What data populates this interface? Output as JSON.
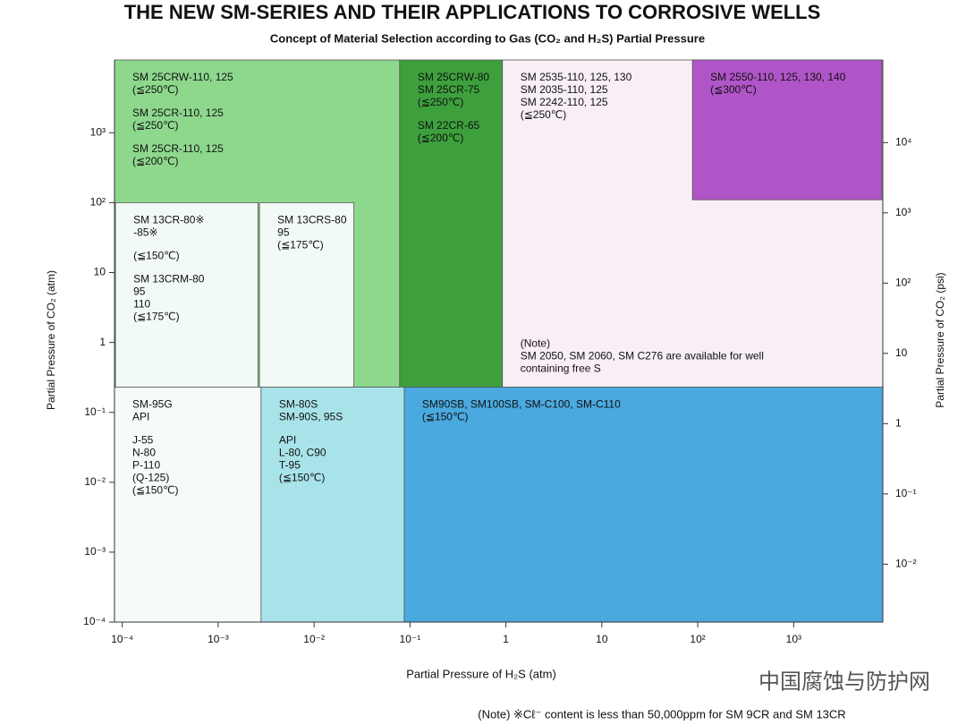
{
  "chart_data": {
    "type": "region",
    "title": "THE NEW SM-SERIES AND THEIR APPLICATIONS TO CORROSIVE WELLS",
    "subtitle": "Concept of Material Selection according to Gas (CO₂ and H₂S) Partial Pressure",
    "xlabel": "Partial Pressure of H₂S (atm)",
    "ylabel": "Partial Pressure of CO₂ (atm)",
    "y2label": "Partial Pressure of CO₂ (psi)",
    "xscale": "log",
    "yscale": "log",
    "xlim": [
      8.3e-05,
      8500
    ],
    "ylim": [
      0.0001,
      11000
    ],
    "y2lim": [
      0.0015,
      150000
    ],
    "xticks": [
      {
        "value": 0.0001,
        "label": "10⁻⁴"
      },
      {
        "value": 0.001,
        "label": "10⁻³"
      },
      {
        "value": 0.01,
        "label": "10⁻²"
      },
      {
        "value": 0.1,
        "label": "10⁻¹"
      },
      1,
      10,
      {
        "value": 100,
        "label": "10²"
      },
      {
        "value": 1000,
        "label": "10³"
      }
    ],
    "yticks": [
      {
        "value": 0.0001,
        "label": "10⁻⁴"
      },
      {
        "value": 0.001,
        "label": "10⁻³"
      },
      {
        "value": 0.01,
        "label": "10⁻²"
      },
      {
        "value": 0.1,
        "label": "10⁻¹"
      },
      1,
      10,
      {
        "value": 100,
        "label": "10²"
      },
      {
        "value": 1000,
        "label": "10³"
      }
    ],
    "y2ticks": [
      {
        "value": 0.01,
        "label": "10⁻²"
      },
      {
        "value": 0.1,
        "label": "10⁻¹"
      },
      1,
      10,
      {
        "value": 100,
        "label": "10²"
      },
      {
        "value": 1000,
        "label": "10³"
      },
      {
        "value": 10000,
        "label": "10⁴"
      }
    ],
    "regions": [
      {
        "x_range": [
          8.3e-05,
          0.078
        ],
        "y_range": [
          0.23,
          11000
        ],
        "color": "#8ed88e",
        "blocks": [
          [
            "SM 25CRW-110, 125",
            "(≦250℃)"
          ],
          [
            "SM 25CR-110, 125",
            "(≦250℃)"
          ],
          [
            "SM 25CR-110, 125",
            "(≦200℃)"
          ]
        ]
      },
      {
        "x_range": [
          8.5e-05,
          0.0026
        ],
        "y_range": [
          0.23,
          100
        ],
        "color": "#f2faf6",
        "blocks": [
          [
            "SM 13CR-80※",
            "-85※"
          ],
          [
            "(≦150℃)"
          ],
          [
            "SM 13CRM-80",
            "95",
            "110",
            "(≦175℃)"
          ]
        ]
      },
      {
        "x_range": [
          0.0027,
          0.026
        ],
        "y_range": [
          0.23,
          100
        ],
        "color": "#f2faf6",
        "blocks": [
          [
            "SM 13CRS-80",
            "95",
            "(≦175℃)"
          ]
        ]
      },
      {
        "x_range": [
          0.078,
          0.92
        ],
        "y_range": [
          0.23,
          11000
        ],
        "color": "#3da03d",
        "blocks": [
          [
            "SM 25CRW-80",
            "SM 25CR-75",
            "(≦250℃)"
          ],
          [
            "SM 22CR-65",
            "(≦200℃)"
          ]
        ]
      },
      {
        "x_range": [
          0.92,
          8500
        ],
        "y_range": [
          0.23,
          11000
        ],
        "color": "#f8eef6",
        "blocks": [
          [
            "SM 2535-110, 125, 130",
            "SM 2035-110, 125",
            "SM 2242-110, 125",
            "(≦250℃)"
          ]
        ]
      },
      {
        "x_range": [
          88,
          8300
        ],
        "y_range": [
          110,
          11000
        ],
        "color": "#b055c8",
        "blocks": [
          [
            "SM 2550-110, 125, 130, 140",
            "(≦300℃)"
          ]
        ]
      },
      {
        "x_range": [
          8.3e-05,
          0.0028
        ],
        "y_range": [
          0.0001,
          0.23
        ],
        "color": "#f4fbf8",
        "blocks": [
          [
            "SM-95G",
            "API"
          ],
          [
            "J-55",
            "N-80",
            "P-110",
            "(Q-125)",
            "(≦150℃)"
          ]
        ]
      },
      {
        "x_range": [
          0.0028,
          0.087
        ],
        "y_range": [
          0.0001,
          0.23
        ],
        "color": "#a9e3ea",
        "blocks": [
          [
            "SM-80S",
            "SM-90S, 95S"
          ],
          [
            "API",
            "L-80, C90",
            "T-95",
            "(≦150℃)"
          ]
        ]
      },
      {
        "x_range": [
          0.087,
          8500
        ],
        "y_range": [
          0.0001,
          0.23
        ],
        "color": "#4aa9df",
        "blocks": [
          [
            "SM90SB, SM100SB, SM-C100, SM-C110",
            "(≦150℃)"
          ]
        ]
      }
    ],
    "region_note": [
      "(Note)",
      "SM 2050, SM 2060, SM C276 are available for well",
      "containing free S"
    ],
    "note": "(Note) ※Cℓ⁻ content is less than 50,000ppm for SM 9CR and SM 13CR"
  },
  "watermark": "中国腐蚀与防护网"
}
